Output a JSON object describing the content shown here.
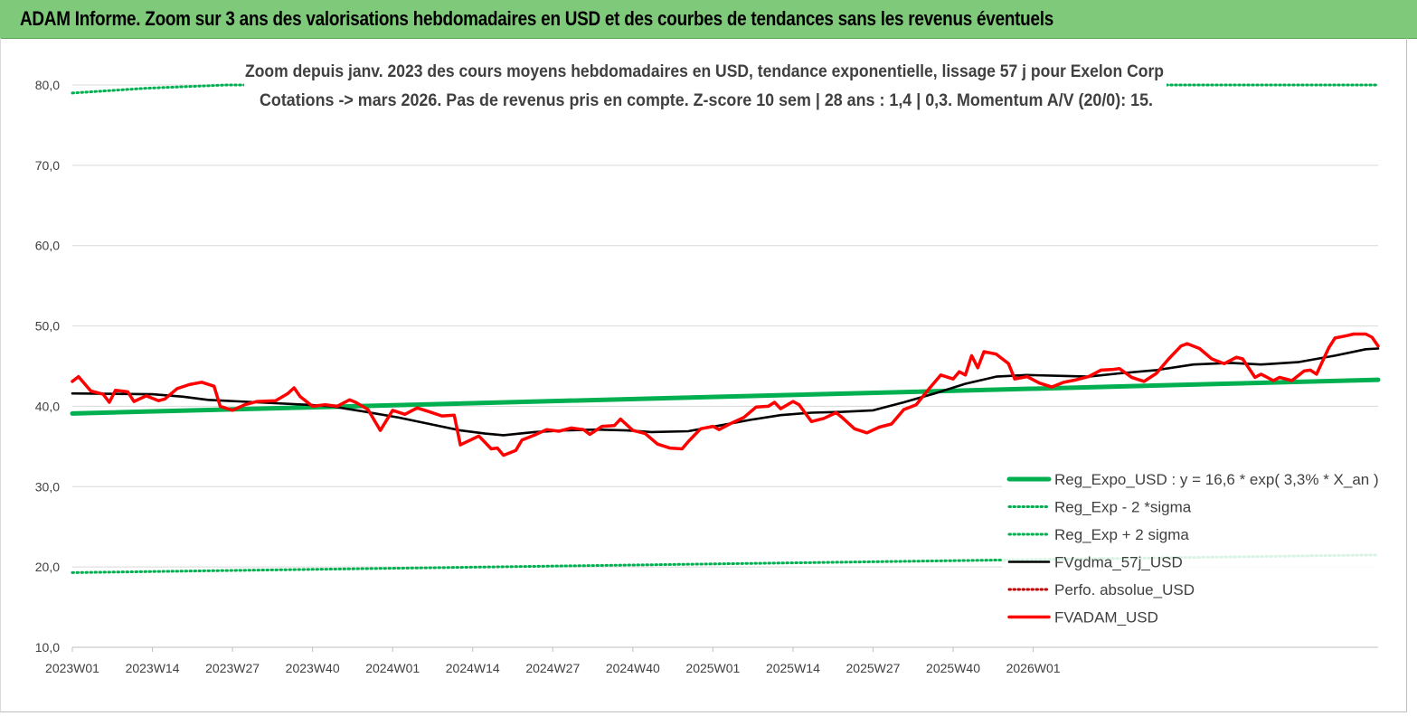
{
  "header": {
    "title": "ADAM Informe. Zoom sur 3 ans des valorisations hebdomadaires en USD et des courbes de tendances sans les revenus éventuels"
  },
  "chart_data": {
    "type": "line",
    "subtitle_line1": "Zoom depuis janv. 2023 des cours moyens hebdomadaires en USD, tendance exponentielle, lissage 57 j pour Exelon Corp",
    "subtitle_line2": "Cotations -> mars 2026. Pas de revenus pris en  compte. Z-score 10 sem  | 28 ans : 1,4 | 0,3. Momentum A/V (20/0): 15.",
    "ylim": [
      10,
      80
    ],
    "y_ticks": [
      "10,0",
      "20,0",
      "30,0",
      "40,0",
      "50,0",
      "60,0",
      "70,0",
      "80,0"
    ],
    "x_ticks": [
      "2023W01",
      "2023W14",
      "2023W27",
      "2023W40",
      "2024W01",
      "2024W14",
      "2024W27",
      "2024W40",
      "2025W01",
      "2025W14",
      "2025W27",
      "2025W40",
      "2026W01"
    ],
    "legend_position": "right",
    "grid": "horizontal",
    "n_weeks": 170,
    "series": [
      {
        "name": "Reg_Expo_USD : y = 16,6 * exp( 3,3% *  X_an )",
        "color": "#00b050",
        "style": "solid-thick",
        "points": [
          [
            0,
            39.1
          ],
          [
            169,
            43.3
          ]
        ]
      },
      {
        "name": "Reg_Exp - 2 *sigma",
        "color": "#00b050",
        "style": "dotted",
        "points": [
          [
            0,
            19.3
          ],
          [
            169,
            21.5
          ]
        ]
      },
      {
        "name": "Reg_Exp + 2 sigma",
        "color": "#00b050",
        "style": "dotted",
        "points": [
          [
            0,
            79.0
          ],
          [
            12,
            79.6
          ],
          [
            25,
            80.0
          ],
          [
            169,
            80.0
          ]
        ]
      },
      {
        "name": "FVgdma_57j_USD",
        "color": "#000000",
        "style": "solid",
        "points": [
          [
            0,
            41.6
          ],
          [
            13,
            41.5
          ],
          [
            18,
            41.2
          ],
          [
            22,
            40.8
          ],
          [
            30,
            40.5
          ],
          [
            38,
            40.2
          ],
          [
            42,
            40.0
          ],
          [
            47,
            39.4
          ],
          [
            53,
            38.6
          ],
          [
            58,
            37.8
          ],
          [
            63,
            37.0
          ],
          [
            67,
            36.6
          ],
          [
            70,
            36.4
          ],
          [
            75,
            36.8
          ],
          [
            80,
            37.0
          ],
          [
            85,
            37.1
          ],
          [
            90,
            37.0
          ],
          [
            94,
            36.8
          ],
          [
            100,
            36.9
          ],
          [
            105,
            37.6
          ],
          [
            110,
            38.3
          ],
          [
            115,
            38.9
          ],
          [
            120,
            39.2
          ],
          [
            125,
            39.3
          ],
          [
            130,
            39.5
          ],
          [
            135,
            40.5
          ],
          [
            140,
            41.6
          ],
          [
            145,
            42.8
          ],
          [
            150,
            43.7
          ],
          [
            155,
            43.9
          ],
          [
            160,
            43.8
          ],
          [
            165,
            43.7
          ],
          [
            170,
            44.1
          ],
          [
            176,
            44.5
          ],
          [
            182,
            45.2
          ],
          [
            188,
            45.4
          ],
          [
            193,
            45.2
          ],
          [
            199,
            45.5
          ],
          [
            205,
            46.3
          ],
          [
            210,
            47.1
          ],
          [
            212,
            47.2
          ]
        ]
      },
      {
        "name": "Perfo. absolue_USD",
        "color": "#c00000",
        "style": "dotted",
        "points": []
      },
      {
        "name": "FVADAM_USD",
        "color": "#ff0000",
        "style": "solid-thick",
        "points": [
          [
            0,
            43.1
          ],
          [
            1,
            43.7
          ],
          [
            3,
            41.9
          ],
          [
            5,
            41.5
          ],
          [
            6,
            40.5
          ],
          [
            7,
            42.0
          ],
          [
            9,
            41.8
          ],
          [
            10,
            40.6
          ],
          [
            12,
            41.3
          ],
          [
            14,
            40.7
          ],
          [
            15,
            40.9
          ],
          [
            17,
            42.2
          ],
          [
            19,
            42.7
          ],
          [
            21,
            43.0
          ],
          [
            23,
            42.5
          ],
          [
            24,
            40.0
          ],
          [
            26,
            39.5
          ],
          [
            28,
            40.2
          ],
          [
            30,
            40.6
          ],
          [
            33,
            40.7
          ],
          [
            35,
            41.6
          ],
          [
            36,
            42.3
          ],
          [
            37,
            41.2
          ],
          [
            39,
            40.0
          ],
          [
            41,
            40.2
          ],
          [
            43,
            40.0
          ],
          [
            45,
            40.8
          ],
          [
            46,
            40.5
          ],
          [
            48,
            39.6
          ],
          [
            50,
            37.0
          ],
          [
            52,
            39.5
          ],
          [
            54,
            39.0
          ],
          [
            56,
            39.8
          ],
          [
            58,
            39.3
          ],
          [
            60,
            38.8
          ],
          [
            62,
            38.9
          ],
          [
            63,
            35.2
          ],
          [
            66,
            36.3
          ],
          [
            67,
            35.5
          ],
          [
            68,
            34.7
          ],
          [
            69,
            34.8
          ],
          [
            70,
            33.9
          ],
          [
            72,
            34.5
          ],
          [
            73,
            35.8
          ],
          [
            75,
            36.4
          ],
          [
            77,
            37.1
          ],
          [
            79,
            36.9
          ],
          [
            81,
            37.3
          ],
          [
            83,
            37.1
          ],
          [
            84,
            36.5
          ],
          [
            86,
            37.5
          ],
          [
            88,
            37.6
          ],
          [
            89,
            38.4
          ],
          [
            91,
            37.0
          ],
          [
            93,
            36.6
          ],
          [
            95,
            35.3
          ],
          [
            97,
            34.8
          ],
          [
            99,
            34.7
          ],
          [
            100,
            35.6
          ],
          [
            102,
            37.2
          ],
          [
            104,
            37.5
          ],
          [
            105,
            37.1
          ],
          [
            107,
            37.9
          ],
          [
            109,
            38.6
          ],
          [
            111,
            39.9
          ],
          [
            113,
            40.0
          ],
          [
            114,
            40.5
          ],
          [
            115,
            39.7
          ],
          [
            117,
            40.6
          ],
          [
            118,
            40.2
          ],
          [
            120,
            38.1
          ],
          [
            122,
            38.5
          ],
          [
            124,
            39.2
          ],
          [
            125,
            38.6
          ],
          [
            127,
            37.2
          ],
          [
            129,
            36.7
          ],
          [
            131,
            37.4
          ],
          [
            133,
            37.8
          ],
          [
            135,
            39.6
          ],
          [
            137,
            40.2
          ],
          [
            139,
            42.1
          ],
          [
            141,
            43.9
          ],
          [
            143,
            43.4
          ],
          [
            144,
            44.3
          ],
          [
            145,
            43.9
          ],
          [
            146,
            46.3
          ],
          [
            147,
            44.8
          ],
          [
            148,
            46.8
          ],
          [
            150,
            46.5
          ],
          [
            152,
            45.3
          ],
          [
            153,
            43.4
          ],
          [
            155,
            43.7
          ],
          [
            157,
            42.9
          ],
          [
            159,
            42.4
          ],
          [
            161,
            43.0
          ],
          [
            163,
            43.3
          ],
          [
            165,
            43.7
          ],
          [
            167,
            44.5
          ],
          [
            169,
            44.6
          ],
          [
            170,
            44.7
          ],
          [
            172,
            43.6
          ],
          [
            174,
            43.1
          ],
          [
            176,
            44.1
          ],
          [
            178,
            45.9
          ],
          [
            180,
            47.5
          ],
          [
            181,
            47.8
          ],
          [
            183,
            47.2
          ],
          [
            185,
            45.9
          ],
          [
            187,
            45.3
          ],
          [
            189,
            46.1
          ],
          [
            190,
            45.9
          ],
          [
            192,
            43.6
          ],
          [
            193,
            44.0
          ],
          [
            195,
            43.2
          ],
          [
            196,
            43.6
          ],
          [
            198,
            43.2
          ],
          [
            200,
            44.4
          ],
          [
            201,
            44.5
          ],
          [
            202,
            44.0
          ],
          [
            204,
            47.3
          ],
          [
            205,
            48.5
          ],
          [
            207,
            48.8
          ],
          [
            208,
            49.0
          ],
          [
            210,
            49.0
          ],
          [
            211,
            48.6
          ],
          [
            212,
            47.5
          ]
        ]
      }
    ]
  }
}
